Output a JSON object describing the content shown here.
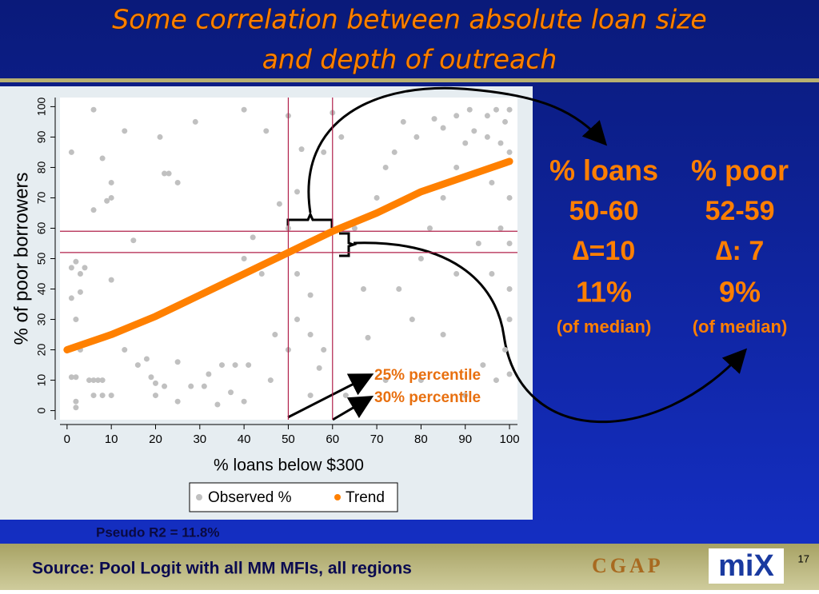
{
  "slide": {
    "title_lines": [
      "Some correlation between absolute loan size",
      "and depth of outreach"
    ],
    "comparisons": [
      {
        "header": "% loans",
        "range": "50-60",
        "delta": "∆=10",
        "share": "11%",
        "basis": "(of median)"
      },
      {
        "header": "% poor",
        "range": "52-59",
        "delta": "∆: 7",
        "share": "9%",
        "basis": "(of median)"
      }
    ],
    "source": "Source: Pool Logit with all MM MFIs, all regions",
    "logos": [
      "CGAP",
      "miX"
    ],
    "page_number": "17"
  },
  "chart_data": {
    "type": "scatter",
    "x_label": "% loans below $300",
    "y_label": "% of poor borrowers",
    "xlim": [
      -1.6,
      101.8
    ],
    "ylim": [
      -3,
      103
    ],
    "xticks": [
      0,
      10,
      20,
      30,
      40,
      50,
      60,
      70,
      80,
      90,
      100
    ],
    "yticks": [
      0,
      10,
      20,
      30,
      40,
      50,
      60,
      70,
      80,
      90,
      100
    ],
    "series": [
      {
        "name": "Observed %",
        "color": "#c0c0c0",
        "x": [
          6,
          13,
          21,
          29,
          40,
          45,
          50,
          53,
          1,
          8,
          10,
          25,
          23,
          22,
          10,
          9,
          6,
          1,
          2,
          3,
          4,
          10,
          15,
          3,
          1,
          2,
          3,
          2,
          1,
          2,
          2,
          5,
          6,
          7,
          8,
          8,
          6,
          10,
          13,
          16,
          18,
          19,
          20,
          22,
          25,
          28,
          31,
          32,
          35,
          37,
          40,
          38,
          41,
          34,
          25,
          20,
          42,
          48,
          50,
          52,
          52,
          55,
          55,
          57,
          58,
          52,
          58,
          60,
          62,
          65,
          70,
          72,
          67,
          68,
          75,
          78,
          80,
          82,
          85,
          88,
          90,
          92,
          95,
          97,
          99,
          100,
          98,
          96,
          100,
          99,
          97,
          94,
          93,
          90,
          80,
          85,
          88,
          72,
          63,
          55,
          46,
          44,
          47,
          50,
          40,
          100,
          100,
          98,
          96,
          100,
          100,
          100,
          95,
          91,
          88,
          85,
          83,
          79,
          76,
          74
        ],
        "values": [
          99,
          92,
          90,
          95,
          99,
          92,
          97,
          86,
          85,
          83,
          75,
          75,
          78,
          78,
          70,
          69,
          66,
          47,
          49,
          45,
          47,
          43,
          56,
          39,
          37,
          30,
          20,
          11,
          11,
          3,
          1,
          10,
          10,
          10,
          10,
          5,
          5,
          5,
          20,
          15,
          17,
          11,
          9,
          8,
          16,
          8,
          8,
          12,
          15,
          6,
          3,
          15,
          15,
          2,
          3,
          5,
          57,
          68,
          60,
          72,
          45,
          38,
          25,
          14,
          20,
          30,
          85,
          98,
          90,
          60,
          70,
          80,
          40,
          24,
          40,
          30,
          50,
          60,
          70,
          80,
          88,
          92,
          97,
          99,
          95,
          85,
          60,
          45,
          30,
          20,
          10,
          15,
          55,
          5,
          10,
          25,
          45,
          10,
          5,
          5,
          10,
          45,
          25,
          20,
          50,
          70,
          99,
          88,
          75,
          55,
          40,
          12,
          90,
          99,
          97,
          93,
          96,
          90,
          95,
          85
        ]
      },
      {
        "name": "Trend",
        "color": "#ff8000",
        "x": [
          0,
          5,
          10,
          15,
          20,
          25,
          30,
          35,
          40,
          45,
          50,
          55,
          60,
          65,
          70,
          75,
          80,
          85,
          90,
          95,
          100
        ],
        "values": [
          20,
          22.5,
          25,
          28,
          31,
          34.5,
          38,
          41.5,
          45,
          48.5,
          52,
          55.5,
          59,
          62,
          65,
          68.5,
          72,
          74.5,
          77,
          79.5,
          82
        ]
      }
    ],
    "reference_lines": {
      "x": [
        50,
        60
      ],
      "y": [
        52,
        59
      ],
      "color": "#b0204a"
    },
    "annotations": [
      "25% percentile",
      "30% percentile"
    ],
    "note": "Pseudo R2 = 11.8%"
  }
}
